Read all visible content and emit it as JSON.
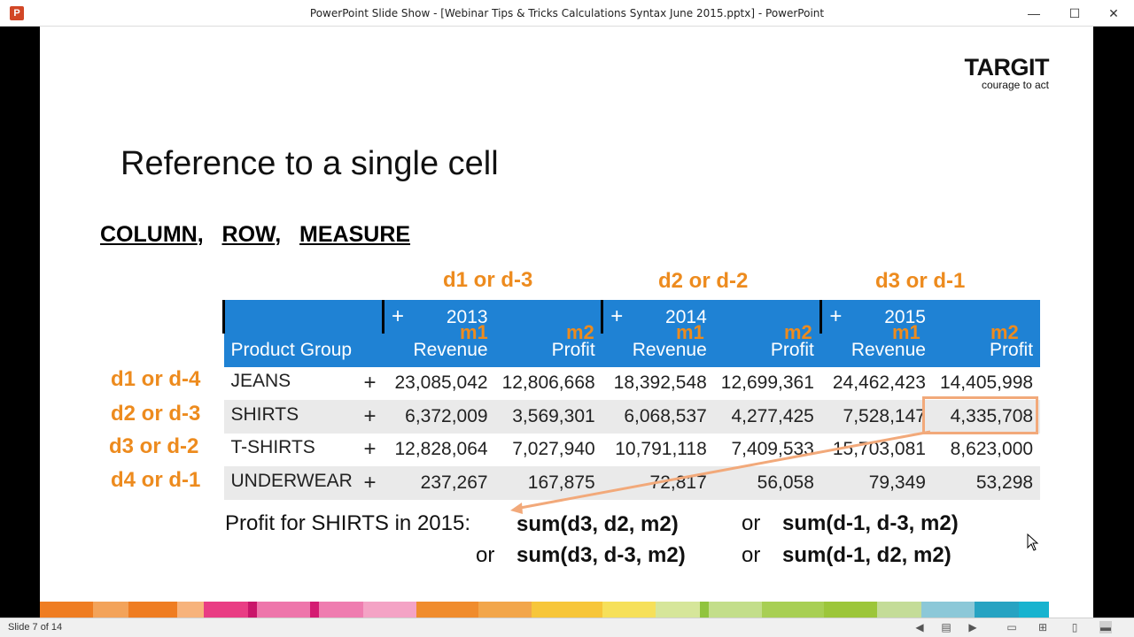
{
  "window": {
    "title": "PowerPoint Slide Show - [Webinar Tips & Tricks Calculations Syntax June 2015.pptx] - PowerPoint",
    "app_icon": "P",
    "controls": {
      "minimize": "—",
      "maximize": "☐",
      "close": "✕"
    }
  },
  "slide": {
    "logo_main": "TARGIT",
    "logo_tagline": "courage to act",
    "title": "Reference to a single cell",
    "subtitle": {
      "column": "COLUMN",
      "sep1": ",",
      "row": "ROW",
      "sep2": ",",
      "measure": "MEASURE"
    },
    "column_dims": [
      "d1 or d-3",
      "d2  or d-2",
      "d3  or d-1"
    ],
    "row_dims": [
      "d1 or d-4",
      "d2 or d-3",
      "d3 or d-2",
      "d4 or d-1"
    ],
    "measure_tags": [
      "m1",
      "m2",
      "m1",
      "m2",
      "m1",
      "m2"
    ],
    "table": {
      "header_label": "Product Group",
      "years": [
        "2013",
        "2014",
        "2015"
      ],
      "expander": "+",
      "measures": [
        "Revenue",
        "Profit",
        "Revenue",
        "Profit",
        "Revenue",
        "Profit"
      ],
      "rows": [
        {
          "name": "JEANS",
          "values": [
            "23,085,042",
            "12,806,668",
            "18,392,548",
            "12,699,361",
            "24,462,423",
            "14,405,998"
          ]
        },
        {
          "name": "SHIRTS",
          "values": [
            "6,372,009",
            "3,569,301",
            "6,068,537",
            "4,277,425",
            "7,528,147",
            "4,335,708"
          ]
        },
        {
          "name": "T-SHIRTS",
          "values": [
            "12,828,064",
            "7,027,940",
            "10,791,118",
            "7,409,533",
            "15,703,081",
            "8,623,000"
          ]
        },
        {
          "name": "UNDERWEAR",
          "values": [
            "237,267",
            "167,875",
            "72,817",
            "56,058",
            "79,349",
            "53,298"
          ]
        }
      ]
    },
    "formula": {
      "label": "Profit for SHIRTS in 2015:",
      "f1": "sum(d3, d2, m2)",
      "or": "or",
      "f2": "sum(d-1, d-3, m2)",
      "f3": "sum(d3, d-3, m2)",
      "f4": "sum(d-1, d2, m2)"
    },
    "colors": {
      "accent": "#ed8b1e",
      "table_header": "#1f82d4",
      "highlight": "#f2a97a"
    }
  },
  "status": {
    "slide_counter": "Slide 7 of 14"
  }
}
